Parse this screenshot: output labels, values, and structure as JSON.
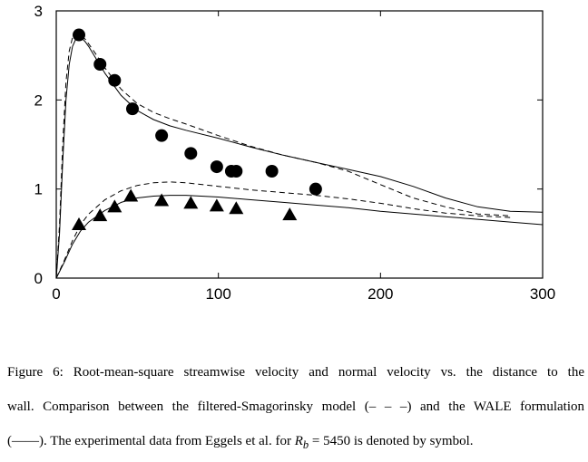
{
  "chart_data": {
    "type": "line",
    "xlim": [
      0,
      300
    ],
    "ylim": [
      0,
      3
    ],
    "x_ticks": [
      "0",
      "100",
      "200",
      "300"
    ],
    "y_ticks": [
      "0",
      "1",
      "2",
      "3"
    ],
    "grid": false,
    "legend": "none",
    "series": [
      {
        "style": "solid",
        "x": [
          0,
          2,
          4,
          6,
          8,
          10,
          12,
          14,
          16,
          18,
          20,
          25,
          30,
          40,
          50,
          60,
          70,
          80,
          100,
          120,
          140,
          160,
          180,
          200,
          220,
          240,
          260,
          280,
          300
        ],
        "y": [
          0,
          0.5,
          1.3,
          2.0,
          2.4,
          2.6,
          2.68,
          2.7,
          2.69,
          2.65,
          2.6,
          2.45,
          2.3,
          2.05,
          1.88,
          1.78,
          1.71,
          1.66,
          1.57,
          1.47,
          1.38,
          1.3,
          1.22,
          1.14,
          1.03,
          0.9,
          0.8,
          0.75,
          0.74
        ]
      },
      {
        "style": "dashed",
        "x": [
          0,
          2,
          4,
          6,
          8,
          10,
          12,
          14,
          16,
          18,
          20,
          25,
          30,
          40,
          50,
          60,
          70,
          80,
          100,
          120,
          140,
          160,
          180,
          200,
          220,
          240,
          260,
          280
        ],
        "y": [
          0,
          0.6,
          1.5,
          2.2,
          2.55,
          2.7,
          2.75,
          2.74,
          2.71,
          2.68,
          2.63,
          2.5,
          2.36,
          2.12,
          1.96,
          1.86,
          1.79,
          1.73,
          1.6,
          1.48,
          1.38,
          1.3,
          1.2,
          1.05,
          0.9,
          0.8,
          0.72,
          0.7
        ]
      },
      {
        "style": "solid",
        "x": [
          0,
          5,
          10,
          15,
          20,
          30,
          40,
          50,
          60,
          70,
          80,
          100,
          120,
          140,
          160,
          180,
          200,
          220,
          240,
          260,
          280,
          300
        ],
        "y": [
          0,
          0.18,
          0.38,
          0.53,
          0.63,
          0.76,
          0.85,
          0.9,
          0.92,
          0.93,
          0.93,
          0.91,
          0.88,
          0.85,
          0.82,
          0.79,
          0.75,
          0.72,
          0.69,
          0.66,
          0.63,
          0.6
        ]
      },
      {
        "style": "dashed",
        "x": [
          0,
          5,
          10,
          15,
          20,
          30,
          40,
          50,
          60,
          70,
          80,
          100,
          120,
          140,
          160,
          180,
          200,
          220,
          240,
          260,
          280
        ],
        "y": [
          0,
          0.2,
          0.42,
          0.6,
          0.72,
          0.88,
          0.98,
          1.04,
          1.07,
          1.08,
          1.07,
          1.03,
          0.99,
          0.96,
          0.93,
          0.89,
          0.84,
          0.78,
          0.73,
          0.7,
          0.68
        ]
      },
      {
        "style": "circle",
        "x": [
          14,
          27,
          36,
          47,
          65,
          83,
          99,
          108,
          111,
          133,
          160
        ],
        "y": [
          2.73,
          2.4,
          2.22,
          1.9,
          1.6,
          1.4,
          1.25,
          1.2,
          1.2,
          1.2,
          1.0
        ]
      },
      {
        "style": "triangle",
        "x": [
          14,
          27,
          36,
          46,
          65,
          83,
          99,
          111,
          144
        ],
        "y": [
          0.6,
          0.7,
          0.8,
          0.92,
          0.87,
          0.84,
          0.81,
          0.78,
          0.71
        ]
      }
    ]
  },
  "caption": {
    "line1": "Figure 6: Root-mean-square streamwise velocity and normal velocity vs. the distance to the",
    "line2_a": "wall. Comparison between the filtered-Smagorinsky model (",
    "line2_dash": "– – –",
    "line2_b": ") and the WALE formulation",
    "line3_a": "(",
    "line3_solid": "——",
    "line3_b": "). The experimental data from Eggels et al. for ",
    "line3_R": "R",
    "line3_sub": "b",
    "line3_c": " = 5450 is denoted by symbol."
  }
}
